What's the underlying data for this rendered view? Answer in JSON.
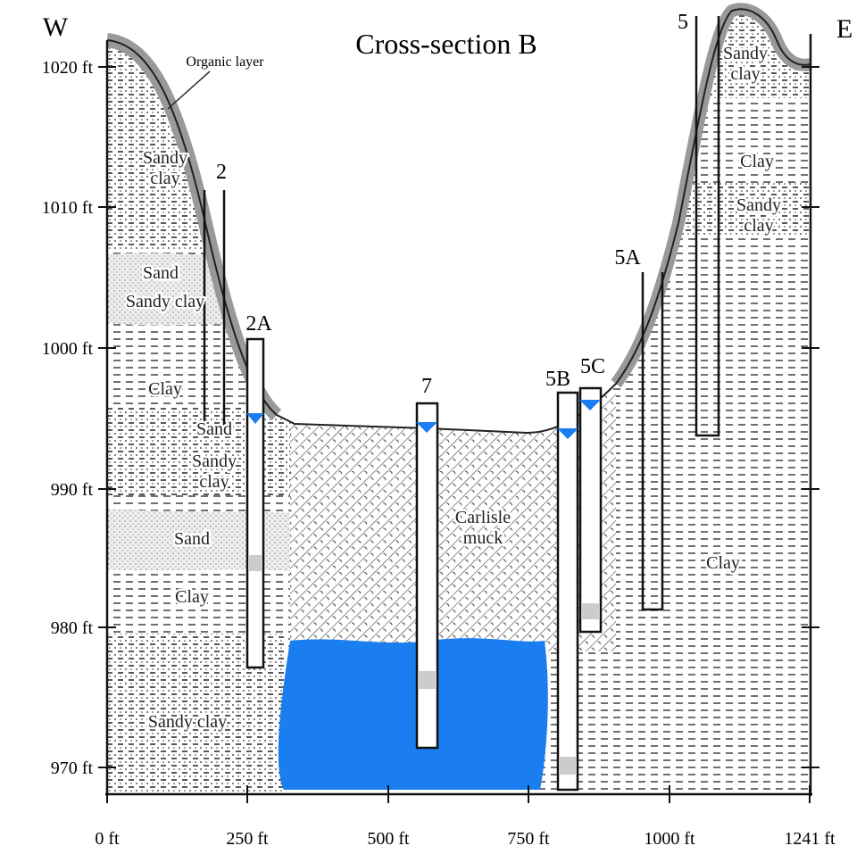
{
  "header": {
    "title": "Cross-section B",
    "west": "W",
    "east": "E",
    "organic_layer": "Organic layer"
  },
  "y_axis": {
    "labels": [
      "1020 ft",
      "1010 ft",
      "1000 ft",
      "990 ft",
      "980 ft",
      "970 ft"
    ]
  },
  "x_axis": {
    "labels": [
      "0 ft",
      "250 ft",
      "500 ft",
      "750 ft",
      "1000 ft",
      "1241 ft"
    ]
  },
  "layers": [
    {
      "label": "Sandy clay"
    },
    {
      "label": "Sand"
    },
    {
      "label": "Sandy clay"
    },
    {
      "label": "Clay"
    },
    {
      "label": "Sand"
    },
    {
      "label": "Sandy clay"
    },
    {
      "label": "Sand"
    },
    {
      "label": "Clay"
    },
    {
      "label": "Sandy clay"
    },
    {
      "label": "Carlisle muck"
    },
    {
      "label": "Clay"
    },
    {
      "label": "Sandy clay"
    },
    {
      "label": "Clay"
    },
    {
      "label": "Sandy clay"
    }
  ],
  "wells": [
    {
      "label": "2"
    },
    {
      "label": "2A"
    },
    {
      "label": "7"
    },
    {
      "label": "5B"
    },
    {
      "label": "5C"
    },
    {
      "label": "5A"
    },
    {
      "label": "5"
    }
  ]
}
